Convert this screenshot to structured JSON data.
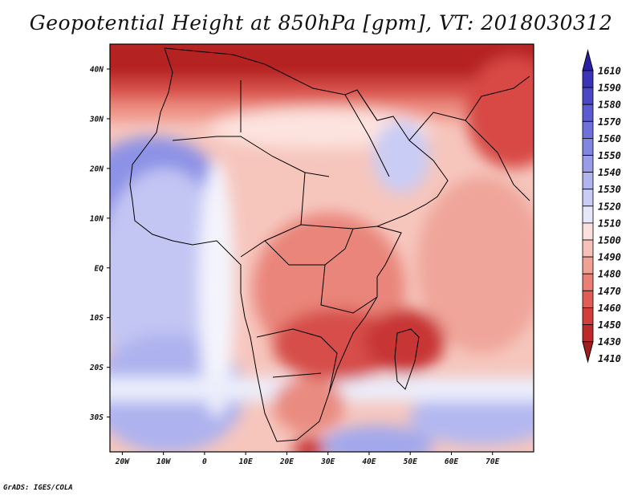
{
  "title": "Geopotential Height at 850hPa [gpm], VT: 2018030312",
  "credit": "GrADS: IGES/COLA",
  "map": {
    "lon_range": [
      -23,
      80
    ],
    "lat_range": [
      -37,
      45
    ],
    "lon_ticks": [
      {
        "value": -20,
        "label": "20W"
      },
      {
        "value": -10,
        "label": "10W"
      },
      {
        "value": 0,
        "label": "0"
      },
      {
        "value": 10,
        "label": "10E"
      },
      {
        "value": 20,
        "label": "20E"
      },
      {
        "value": 30,
        "label": "30E"
      },
      {
        "value": 40,
        "label": "40E"
      },
      {
        "value": 50,
        "label": "50E"
      },
      {
        "value": 60,
        "label": "60E"
      },
      {
        "value": 70,
        "label": "70E"
      }
    ],
    "lat_ticks": [
      {
        "value": 40,
        "label": "40N"
      },
      {
        "value": 30,
        "label": "30N"
      },
      {
        "value": 20,
        "label": "20N"
      },
      {
        "value": 10,
        "label": "10N"
      },
      {
        "value": 0,
        "label": "EQ"
      },
      {
        "value": -10,
        "label": "10S"
      },
      {
        "value": -20,
        "label": "20S"
      },
      {
        "value": -30,
        "label": "30S"
      }
    ]
  },
  "colorbar": {
    "labels": [
      "1610",
      "1590",
      "1580",
      "1570",
      "1560",
      "1550",
      "1540",
      "1530",
      "1520",
      "1510",
      "1500",
      "1490",
      "1480",
      "1470",
      "1460",
      "1450",
      "1430",
      "1410"
    ],
    "colors": [
      "#2a20a8",
      "#3a35b8",
      "#4b48c6",
      "#5c5cd2",
      "#6e70dc",
      "#8286e3",
      "#999de9",
      "#b0b4ef",
      "#c9ccf5",
      "#e6e7fb",
      "#fbe0dc",
      "#f7c1b9",
      "#f1a096",
      "#ea7f75",
      "#e05d56",
      "#d23e3c",
      "#be2a2a",
      "#a51c1c"
    ]
  }
}
